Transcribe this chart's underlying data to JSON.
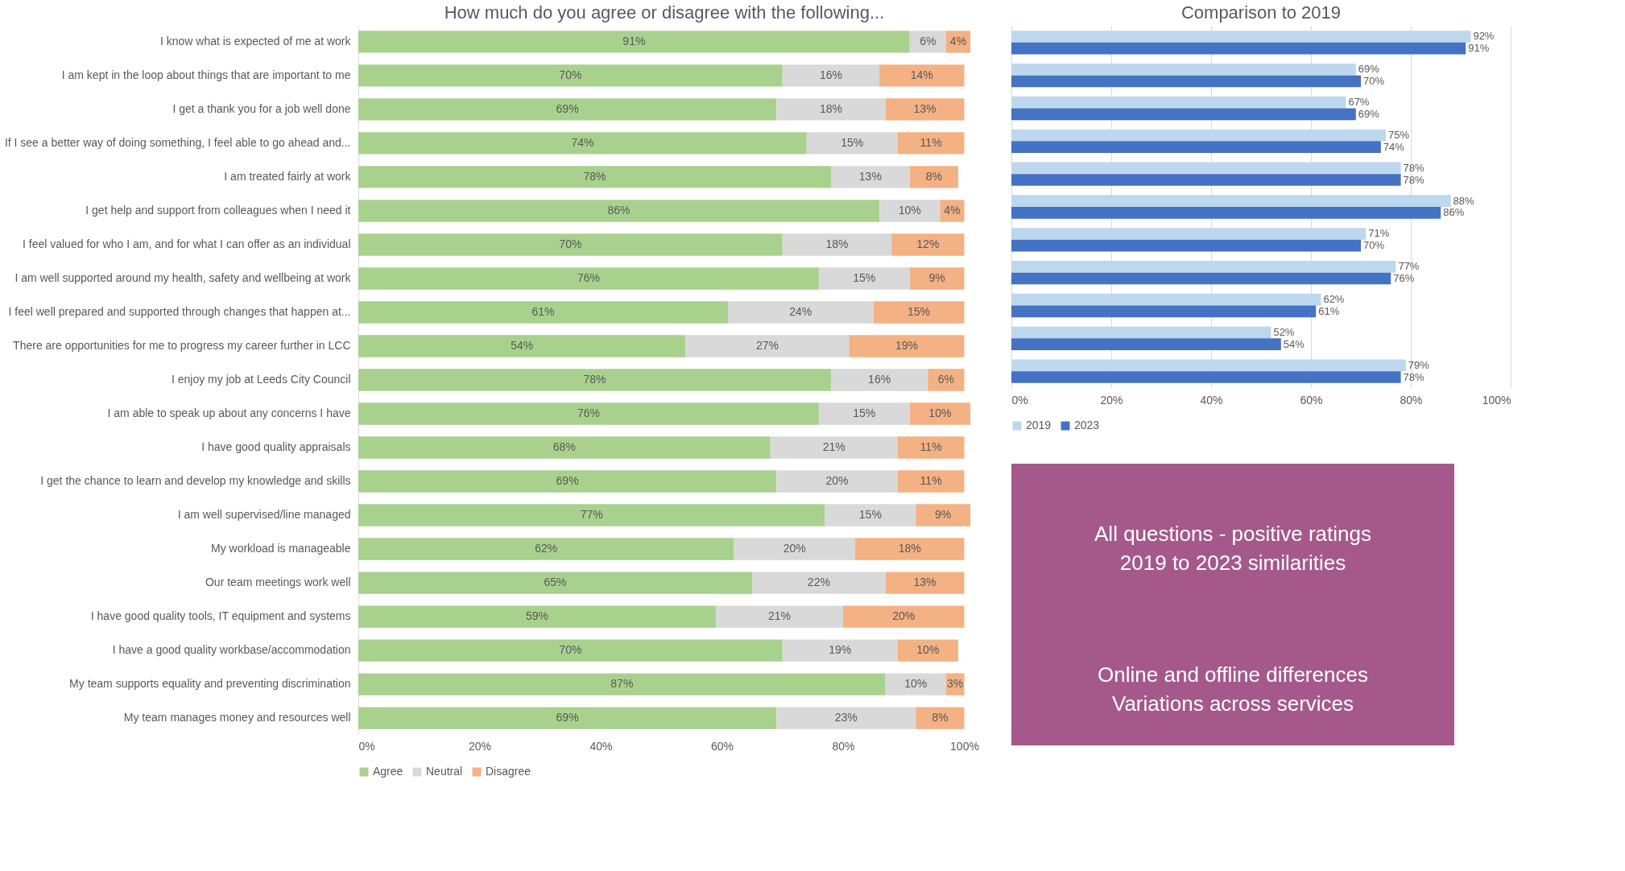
{
  "chart_data": [
    {
      "type": "bar",
      "orientation": "horizontal",
      "stacked": true,
      "title": "How much do you agree or disagree with the following...",
      "categories": [
        "I know what is expected of me at work",
        "I am kept in the loop about things that are important to me",
        "I get a thank you for a job well done",
        "If I see a better way of doing something, I feel able to go ahead and...",
        "I am treated fairly at work",
        "I get help and support from colleagues when I need it",
        "I feel valued for who I am, and for what I can offer as an individual",
        "I am well supported around my health, safety and wellbeing at work",
        "I feel well prepared and supported through changes that happen at...",
        "There are opportunities for me to progress my career further in LCC",
        "I enjoy my job at Leeds City Council",
        "I am able to speak up about any concerns I have",
        "I have good quality appraisals",
        "I get the chance to learn and develop my knowledge and skills",
        "I am well supervised/line managed",
        "My workload is manageable",
        "Our team meetings work well",
        "I have good quality tools, IT equipment and systems",
        "I have a good quality workbase/accommodation",
        "My team supports equality and preventing discrimination",
        "My team manages money and resources well"
      ],
      "series": [
        {
          "name": "Agree",
          "color": "#a9d18e",
          "values": [
            91,
            70,
            69,
            74,
            78,
            86,
            70,
            76,
            61,
            54,
            78,
            76,
            68,
            69,
            77,
            62,
            65,
            59,
            70,
            87,
            69
          ],
          "value_labels": [
            "91%",
            "70%",
            "69%",
            "74%",
            "78%",
            "86%",
            "70%",
            "76%",
            "61%",
            "54%",
            "78%",
            "76%",
            "68%",
            "69%",
            "77%",
            "62%",
            "65%",
            "59%",
            "70%",
            "87%",
            "69%"
          ]
        },
        {
          "name": "Neutral",
          "color": "#d9d9d9",
          "values": [
            6,
            16,
            18,
            15,
            13,
            10,
            18,
            15,
            24,
            27,
            16,
            15,
            21,
            20,
            15,
            20,
            22,
            21,
            19,
            10,
            23
          ],
          "value_labels": [
            "6%",
            "16%",
            "18%",
            "15%",
            "13%",
            "10%",
            "18%",
            "15%",
            "24%",
            "27%",
            "16%",
            "15%",
            "21%",
            "20%",
            "15%",
            "20%",
            "22%",
            "21%",
            "19%",
            "10%",
            "23%"
          ]
        },
        {
          "name": "Disagree",
          "color": "#f4b183",
          "values": [
            4,
            14,
            13,
            11,
            8,
            4,
            12,
            9,
            15,
            19,
            6,
            10,
            11,
            11,
            9,
            18,
            13,
            20,
            10,
            3,
            8
          ],
          "value_labels": [
            "4%",
            "14%",
            "13%",
            "11%",
            "8%",
            "4%",
            "12%",
            "9%",
            "15%",
            "19%",
            "6%",
            "10%",
            "11%",
            "11%",
            "9%",
            "18%",
            "13%",
            "20%",
            "10%",
            "3%",
            "8%"
          ]
        }
      ],
      "xlim": [
        0,
        101
      ],
      "xticks": [
        {
          "value": 0,
          "label": "0%"
        },
        {
          "value": 20,
          "label": "20%"
        },
        {
          "value": 40,
          "label": "40%"
        },
        {
          "value": 60,
          "label": "60%"
        },
        {
          "value": 80,
          "label": "80%"
        },
        {
          "value": 100,
          "label": "100%"
        }
      ],
      "grid": false,
      "legend": "bottom"
    },
    {
      "type": "bar",
      "orientation": "horizontal",
      "title": "Comparison to 2019",
      "categories": [
        null,
        null,
        null,
        null,
        null,
        null,
        null,
        null,
        null,
        null,
        null
      ],
      "series": [
        {
          "name": "2019",
          "color": "#bdd7ee",
          "values": [
            92,
            69,
            67,
            75,
            78,
            88,
            71,
            77,
            62,
            52,
            79
          ],
          "value_labels": [
            "92%",
            "69%",
            "67%",
            "75%",
            "78%",
            "88%",
            "71%",
            "77%",
            "62%",
            "52%",
            "79%"
          ]
        },
        {
          "name": "2023",
          "color": "#4472c4",
          "values": [
            91,
            70,
            69,
            74,
            78,
            86,
            70,
            76,
            61,
            54,
            78
          ],
          "value_labels": [
            "91%",
            "70%",
            "69%",
            "74%",
            "78%",
            "86%",
            "70%",
            "76%",
            "61%",
            "54%",
            "78%"
          ]
        }
      ],
      "xlim": [
        0,
        100
      ],
      "xticks": [
        {
          "value": 0,
          "label": "0%"
        },
        {
          "value": 20,
          "label": "20%"
        },
        {
          "value": 40,
          "label": "40%"
        },
        {
          "value": 60,
          "label": "60%"
        },
        {
          "value": 80,
          "label": "80%"
        },
        {
          "value": 100,
          "label": "100%"
        }
      ],
      "grid": "x",
      "legend": "bottom"
    },
    {
      "type": "other",
      "color": "#a5598a",
      "annotations": [
        "All questions - positive ratings\n2019 to 2023  similarities",
        "Online and offline differences\nVariations across services"
      ]
    }
  ]
}
